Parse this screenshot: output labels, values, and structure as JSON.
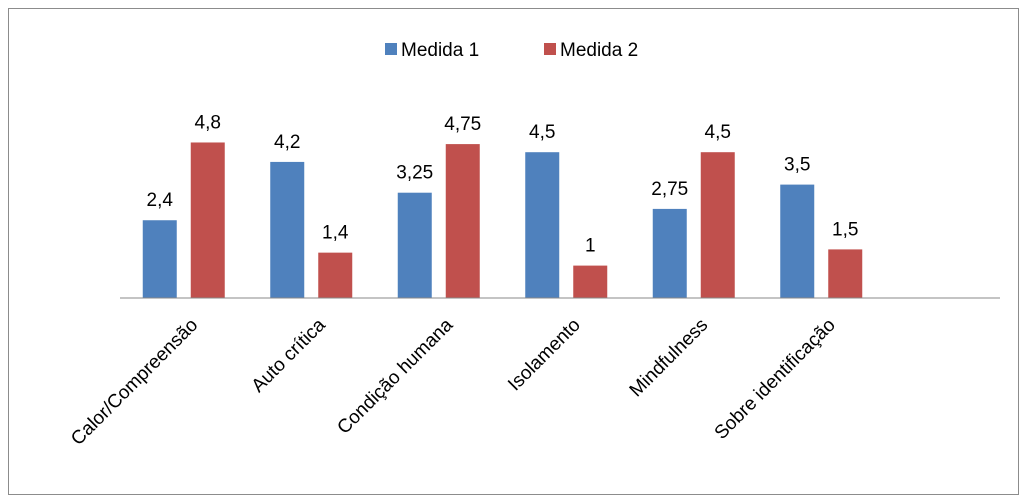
{
  "chart_data": {
    "type": "bar",
    "categories": [
      "Calor/Compreensão",
      "Auto crítica",
      "Condição humana",
      "Isolamento",
      "Mindfulness",
      "Sobre identificação"
    ],
    "series": [
      {
        "name": "Medida 1",
        "color": "#4f81bd",
        "values": [
          2.4,
          4.2,
          3.25,
          4.5,
          2.75,
          3.5
        ],
        "labels": [
          "2,4",
          "4,2",
          "3,25",
          "4,5",
          "2,75",
          "3,5"
        ]
      },
      {
        "name": "Medida 2",
        "color": "#c0504d",
        "values": [
          4.8,
          1.4,
          4.75,
          1,
          4.5,
          1.5
        ],
        "labels": [
          "4,8",
          "1,4",
          "4,75",
          "1",
          "4,5",
          "1,5"
        ]
      }
    ],
    "ylim": [
      0,
      5
    ],
    "legend_position": "top-center",
    "grid": false
  }
}
